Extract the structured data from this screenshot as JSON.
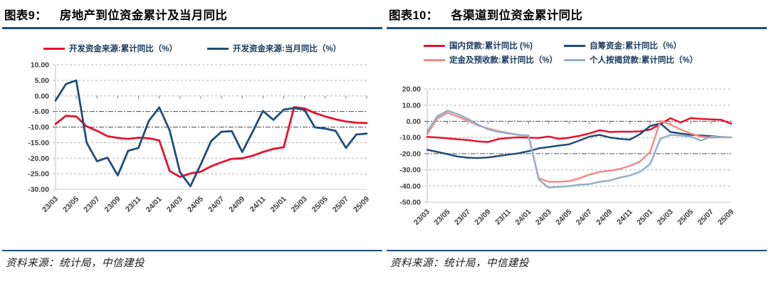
{
  "panels": [
    {
      "figure_label": "图表9：",
      "title": "房地产到位资金累计及当月同比",
      "source_note": "资料来源：统计局，中信建投",
      "accent_color": "#1f4e79"
    },
    {
      "figure_label": "图表10：",
      "title": "各渠道到位资金累计同比",
      "source_note": "资料来源：统计局，中信建投",
      "accent_color": "#1f4e79"
    }
  ],
  "chart_data": [
    {
      "type": "line",
      "title": "房地产到位资金累计及当月同比",
      "xlabel": "",
      "ylabel": "",
      "ylim": [
        -30,
        10
      ],
      "yticks": [
        10,
        5,
        0,
        -5,
        -10,
        -15,
        -20,
        -25,
        -30
      ],
      "grid": "dashed horizontal",
      "legend_position": "top",
      "x_tick_step": 2,
      "categories": [
        "23/03",
        "23/04",
        "23/05",
        "23/06",
        "23/07",
        "23/08",
        "23/09",
        "23/10",
        "23/11",
        "23/12",
        "24/01",
        "24/02",
        "24/03",
        "24/04",
        "24/05",
        "24/06",
        "24/07",
        "24/08",
        "24/09",
        "24/10",
        "24/11",
        "24/12",
        "25/01",
        "25/02",
        "25/03",
        "25/04",
        "25/05",
        "25/06",
        "25/07",
        "25/08",
        "25/09"
      ],
      "series": [
        {
          "name": "开发资金来源:累计同比（%）",
          "color": "#e8112d",
          "values": [
            -9.0,
            -6.4,
            -6.6,
            -9.8,
            -11.2,
            -12.9,
            -13.5,
            -13.8,
            -13.4,
            -13.6,
            -14.3,
            -24.1,
            -26.0,
            -24.9,
            -24.3,
            -22.6,
            -21.3,
            -20.2,
            -20.0,
            -19.2,
            -18.0,
            -17.0,
            -16.5,
            -3.6,
            -4.0,
            -5.5,
            -6.6,
            -7.5,
            -8.2,
            -8.6,
            -8.7
          ]
        },
        {
          "name": "开发资金来源:当月同比（%）",
          "color": "#1f4e79",
          "values": [
            -1.5,
            3.8,
            5.0,
            -15.0,
            -21.0,
            -19.8,
            -25.5,
            -17.6,
            -16.7,
            -8.0,
            -3.7,
            -11.0,
            -24.5,
            -29.0,
            -22.0,
            -14.5,
            -11.5,
            -11.3,
            -18.0,
            -11.5,
            -4.8,
            -7.7,
            -4.4,
            -3.9,
            -4.5,
            -10.1,
            -10.5,
            -11.2,
            -16.7,
            -12.4,
            -12.1
          ]
        }
      ]
    },
    {
      "type": "line",
      "title": "各渠道到位资金累计同比",
      "xlabel": "",
      "ylabel": "",
      "ylim": [
        -50,
        20
      ],
      "yticks": [
        20,
        10,
        0,
        -10,
        -20,
        -30,
        -40,
        -50
      ],
      "grid": "dashed horizontal",
      "legend_position": "top",
      "x_tick_step": 2,
      "categories": [
        "23/03",
        "23/04",
        "23/05",
        "23/06",
        "23/07",
        "23/08",
        "23/09",
        "23/10",
        "23/11",
        "23/12",
        "24/01",
        "24/02",
        "24/03",
        "24/04",
        "24/05",
        "24/06",
        "24/07",
        "24/08",
        "24/09",
        "24/10",
        "24/11",
        "24/12",
        "25/01",
        "25/02",
        "25/03",
        "25/04",
        "25/05",
        "25/06",
        "25/07",
        "25/08",
        "25/09"
      ],
      "series": [
        {
          "name": "国内贷款:累计同比 (%)",
          "color": "#e8112d",
          "values": [
            -9.6,
            -10.0,
            -10.5,
            -11.1,
            -11.5,
            -12.4,
            -12.8,
            -11.0,
            -10.3,
            -9.9,
            -10.1,
            -10.3,
            -9.4,
            -10.8,
            -10.1,
            -9.0,
            -7.5,
            -5.5,
            -6.6,
            -6.4,
            -6.4,
            -6.2,
            -5.1,
            -1.8,
            1.9,
            -0.7,
            2.0,
            1.5,
            1.2,
            1.0,
            -1.5
          ]
        },
        {
          "name": "自筹资金:累计同比（%）",
          "color": "#1f4e79",
          "values": [
            -17.6,
            -18.9,
            -20.3,
            -21.8,
            -22.5,
            -22.7,
            -22.3,
            -21.5,
            -20.6,
            -19.8,
            -18.5,
            -16.7,
            -15.9,
            -15.0,
            -14.2,
            -11.9,
            -9.5,
            -8.4,
            -10.0,
            -10.8,
            -11.3,
            -7.9,
            -2.9,
            -1.3,
            -6.6,
            -7.5,
            -8.4,
            -8.8,
            -9.2,
            -9.7,
            -9.9
          ]
        },
        {
          "name": "定金及预收款:累计同比（%）",
          "color": "#f28b8b",
          "values": [
            -7.9,
            1.8,
            5.3,
            3.0,
            0.5,
            -2.5,
            -4.4,
            -6.0,
            -7.2,
            -8.4,
            -9.2,
            -35.2,
            -37.4,
            -37.4,
            -37.0,
            -35.2,
            -33.0,
            -31.3,
            -30.6,
            -29.5,
            -27.5,
            -24.8,
            -19.0,
            0.3,
            -2.0,
            -5.1,
            -7.5,
            -9.5,
            -10.1,
            -9.9,
            -9.9
          ]
        },
        {
          "name": "个人按揭贷款:累计同比（%）",
          "color": "#93b1c7",
          "values": [
            -6.2,
            3.1,
            6.6,
            4.5,
            1.6,
            -2.0,
            -5.0,
            -6.5,
            -7.5,
            -8.4,
            -8.7,
            -36.1,
            -41.0,
            -40.5,
            -40.1,
            -39.2,
            -38.9,
            -37.4,
            -36.6,
            -34.8,
            -33.5,
            -31.3,
            -26.4,
            -10.8,
            -8.4,
            -8.8,
            -9.5,
            -11.9,
            -9.5,
            -9.9,
            -9.9
          ]
        }
      ]
    }
  ]
}
